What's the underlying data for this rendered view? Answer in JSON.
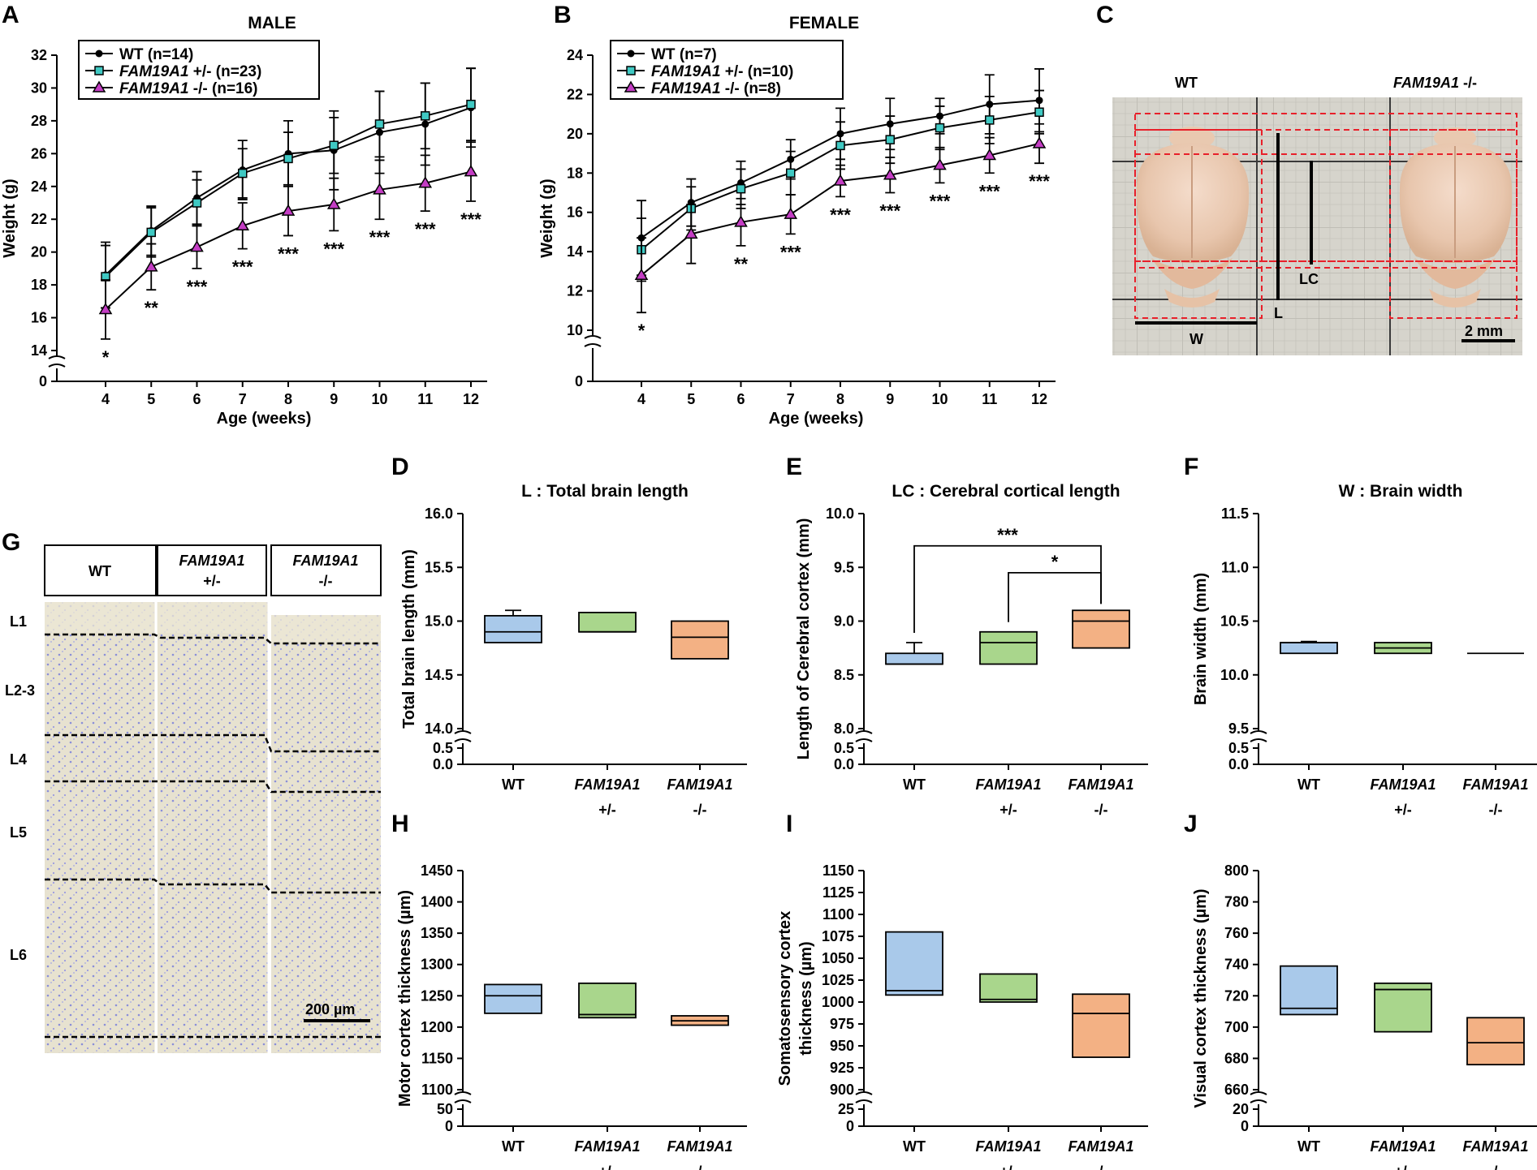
{
  "panels": {
    "A": "A",
    "B": "B",
    "C": "C",
    "D": "D",
    "E": "E",
    "F": "F",
    "G": "G",
    "H": "H",
    "I": "I",
    "J": "J"
  },
  "colors": {
    "wt_line": "#000000",
    "het_marker": "#3fc9c3",
    "ko_marker": "#c43dc4",
    "wt_box": "#a9c9ea",
    "het_box": "#a9d68c",
    "ko_box": "#f3b184",
    "brain_red_dash": "#e8202a",
    "nissl_bg": "#e9e4d4"
  },
  "chart_data": [
    {
      "id": "A",
      "type": "line",
      "title": "MALE",
      "xlabel": "Age (weeks)",
      "ylabel": "Weight (g)",
      "x": [
        4,
        5,
        6,
        7,
        8,
        9,
        10,
        11,
        12
      ],
      "ylim": [
        14,
        32
      ],
      "yticks": [
        14,
        16,
        18,
        20,
        22,
        24,
        26,
        28,
        30,
        32
      ],
      "axis_break": {
        "low_label": "0"
      },
      "series": [
        {
          "name": "WT (n=14)",
          "marker": "circle",
          "values": [
            18.6,
            21.3,
            23.3,
            25.0,
            26.0,
            26.2,
            27.3,
            27.8,
            28.8
          ],
          "errors": [
            2.0,
            1.5,
            1.6,
            1.8,
            2.0,
            2.4,
            2.5,
            2.5,
            2.4
          ]
        },
        {
          "name_prefix": "FAM19A1",
          "name_suffix": " +/- (n=23)",
          "marker": "square",
          "values": [
            18.5,
            21.2,
            23.0,
            24.8,
            25.7,
            26.5,
            27.8,
            28.3,
            29.0
          ],
          "errors": [
            1.9,
            1.5,
            1.4,
            1.5,
            1.6,
            1.7,
            2.0,
            2.0,
            2.2
          ]
        },
        {
          "name_prefix": "FAM19A1",
          "name_suffix": " -/- (n=16)",
          "marker": "triangle",
          "values": [
            16.5,
            19.1,
            20.3,
            21.6,
            22.5,
            22.9,
            23.8,
            24.2,
            24.9
          ],
          "errors": [
            1.8,
            1.4,
            1.3,
            1.4,
            1.5,
            1.6,
            1.8,
            1.7,
            1.8
          ]
        }
      ],
      "annotations": [
        "*",
        "**",
        "***",
        "***",
        "***",
        "***",
        "***",
        "***",
        "***"
      ]
    },
    {
      "id": "B",
      "type": "line",
      "title": "FEMALE",
      "xlabel": "Age (weeks)",
      "ylabel": "Weight (g)",
      "x": [
        4,
        5,
        6,
        7,
        8,
        9,
        10,
        11,
        12
      ],
      "ylim": [
        10,
        24
      ],
      "yticks": [
        10,
        12,
        14,
        16,
        18,
        20,
        22,
        24
      ],
      "axis_break": {
        "low_label": "0"
      },
      "series": [
        {
          "name": "WT (n=7)",
          "marker": "circle",
          "values": [
            14.7,
            16.5,
            17.5,
            18.7,
            20.0,
            20.5,
            20.9,
            21.5,
            21.7
          ],
          "errors": [
            1.9,
            1.2,
            1.1,
            1.0,
            1.3,
            1.3,
            0.9,
            1.5,
            1.6
          ]
        },
        {
          "name_prefix": "FAM19A1",
          "name_suffix": " +/- (n=10)",
          "marker": "square",
          "values": [
            14.1,
            16.2,
            17.2,
            18.0,
            19.4,
            19.7,
            20.3,
            20.7,
            21.1
          ],
          "errors": [
            1.6,
            1.1,
            1.0,
            1.1,
            1.2,
            1.2,
            1.1,
            1.2,
            1.1
          ]
        },
        {
          "name_prefix": "FAM19A1",
          "name_suffix": " -/- (n=8)",
          "marker": "triangle",
          "values": [
            12.8,
            14.9,
            15.5,
            15.9,
            17.6,
            17.9,
            18.4,
            18.9,
            19.5
          ],
          "errors": [
            1.9,
            1.5,
            1.2,
            1.0,
            0.8,
            0.9,
            0.9,
            0.9,
            1.0
          ]
        }
      ],
      "annotations": [
        "*",
        "",
        "**",
        "***",
        "***",
        "***",
        "***",
        "***",
        "***"
      ]
    },
    {
      "id": "D",
      "type": "box",
      "title": "L : Total brain length",
      "ylabel": "Total brain length (mm)",
      "categories": [
        "WT",
        "FAM19A1",
        "FAM19A1"
      ],
      "genotypes": [
        "",
        "+/-",
        "-/-"
      ],
      "ylim": [
        14.0,
        16.0
      ],
      "yticks": [
        "14.0",
        "14.5",
        "15.0",
        "15.5",
        "16.0"
      ],
      "axis_break": {
        "low_labels": [
          "0.0",
          "0.5"
        ]
      },
      "boxes": [
        {
          "min": 14.8,
          "q1": 14.8,
          "median": 14.9,
          "q3": 15.05,
          "max": 15.1
        },
        {
          "min": 14.9,
          "q1": 14.9,
          "median": 14.9,
          "q3": 15.08,
          "max": 15.08
        },
        {
          "min": 14.65,
          "q1": 14.65,
          "median": 14.85,
          "q3": 15.0,
          "max": 15.0
        }
      ]
    },
    {
      "id": "E",
      "type": "box",
      "title": "LC : Cerebral cortical length",
      "ylabel": "Length of Cerebral cortex (mm)",
      "categories": [
        "WT",
        "FAM19A1",
        "FAM19A1"
      ],
      "genotypes": [
        "",
        "+/-",
        "-/-"
      ],
      "ylim": [
        8.0,
        10.0
      ],
      "yticks": [
        "8.0",
        "8.5",
        "9.0",
        "9.5",
        "10.0"
      ],
      "axis_break": {
        "low_labels": [
          "0.0",
          "0.5"
        ]
      },
      "boxes": [
        {
          "min": 8.6,
          "q1": 8.6,
          "median": 8.6,
          "q3": 8.7,
          "max": 8.8
        },
        {
          "min": 8.6,
          "q1": 8.6,
          "median": 8.8,
          "q3": 8.9,
          "max": 8.9
        },
        {
          "min": 8.75,
          "q1": 8.75,
          "median": 9.0,
          "q3": 9.1,
          "max": 9.1
        }
      ],
      "significance": [
        {
          "from": 0,
          "to": 2,
          "label": "***"
        },
        {
          "from": 1,
          "to": 2,
          "label": "*"
        }
      ]
    },
    {
      "id": "F",
      "type": "box",
      "title": "W : Brain width",
      "ylabel": "Brain width (mm)",
      "categories": [
        "WT",
        "FAM19A1",
        "FAM19A1"
      ],
      "genotypes": [
        "",
        "+/-",
        "-/-"
      ],
      "ylim": [
        9.5,
        11.5
      ],
      "yticks": [
        "9.5",
        "10.0",
        "10.5",
        "11.0",
        "11.5"
      ],
      "axis_break": {
        "low_labels": [
          "0.0",
          "0.5"
        ]
      },
      "boxes": [
        {
          "min": 10.2,
          "q1": 10.2,
          "median": 10.3,
          "q3": 10.3,
          "max": 10.31
        },
        {
          "min": 10.2,
          "q1": 10.2,
          "median": 10.25,
          "q3": 10.3,
          "max": 10.3
        },
        {
          "min": 10.2,
          "q1": 10.2,
          "median": 10.2,
          "q3": 10.2,
          "max": 10.2
        }
      ]
    },
    {
      "id": "H",
      "type": "box",
      "ylabel": "Motor cortex thickness (µm)",
      "categories": [
        "WT",
        "FAM19A1",
        "FAM19A1"
      ],
      "genotypes": [
        "",
        "+/-",
        "-/-"
      ],
      "ylim": [
        1100,
        1450
      ],
      "yticks": [
        "1100",
        "1150",
        "1200",
        "1250",
        "1300",
        "1350",
        "1400",
        "1450"
      ],
      "axis_break": {
        "low_labels": [
          "0",
          "50"
        ]
      },
      "boxes": [
        {
          "min": 1222,
          "q1": 1222,
          "median": 1250,
          "q3": 1268,
          "max": 1268
        },
        {
          "min": 1215,
          "q1": 1215,
          "median": 1220,
          "q3": 1270,
          "max": 1270
        },
        {
          "min": 1203,
          "q1": 1203,
          "median": 1210,
          "q3": 1218,
          "max": 1218
        }
      ]
    },
    {
      "id": "I",
      "type": "box",
      "ylabel": "Somatosensory cortex thickness (µm)",
      "ylabel_lines": [
        "Somatosensory cortex",
        "thickness (µm)"
      ],
      "categories": [
        "WT",
        "FAM19A1",
        "FAM19A1"
      ],
      "genotypes": [
        "",
        "+/-",
        "-/-"
      ],
      "ylim": [
        900,
        1150
      ],
      "yticks": [
        "900",
        "925",
        "950",
        "975",
        "1000",
        "1025",
        "1050",
        "1075",
        "1100",
        "1125",
        "1150"
      ],
      "axis_break": {
        "low_labels": [
          "0",
          "25"
        ]
      },
      "boxes": [
        {
          "min": 1008,
          "q1": 1008,
          "median": 1013,
          "q3": 1080,
          "max": 1080
        },
        {
          "min": 1000,
          "q1": 1000,
          "median": 1003,
          "q3": 1032,
          "max": 1032
        },
        {
          "min": 937,
          "q1": 937,
          "median": 987,
          "q3": 1009,
          "max": 1009
        }
      ]
    },
    {
      "id": "J",
      "type": "box",
      "ylabel": "Visual cortex thickness (µm)",
      "categories": [
        "WT",
        "FAM19A1",
        "FAM19A1"
      ],
      "genotypes": [
        "",
        "+/-",
        "-/-"
      ],
      "ylim": [
        650,
        800
      ],
      "yticks": [
        "660",
        "680",
        "700",
        "720",
        "740",
        "760",
        "780",
        "800"
      ],
      "axis_break": {
        "low_labels": [
          "0",
          "20"
        ]
      },
      "boxes": [
        {
          "min": 708,
          "q1": 708,
          "median": 712,
          "q3": 739,
          "max": 739
        },
        {
          "min": 697,
          "q1": 697,
          "median": 724,
          "q3": 728,
          "max": 728
        },
        {
          "min": 676,
          "q1": 676,
          "median": 690,
          "q3": 706,
          "max": 706
        }
      ]
    }
  ],
  "brain_photo": {
    "wt_label": "WT",
    "ko_prefix": "FAM19A1",
    "ko_suffix": " -/-",
    "measure_labels": {
      "L": "L",
      "LC": "LC",
      "W": "W"
    },
    "scalebar": "2 mm"
  },
  "histology": {
    "headers": [
      {
        "line1": "WT",
        "line2": ""
      },
      {
        "line1": "FAM19A1",
        "line2": "+/-"
      },
      {
        "line1": "FAM19A1",
        "line2": "-/-"
      }
    ],
    "layers": [
      "L1",
      "L2-3",
      "L4",
      "L5",
      "L6"
    ],
    "scalebar": "200 µm"
  }
}
